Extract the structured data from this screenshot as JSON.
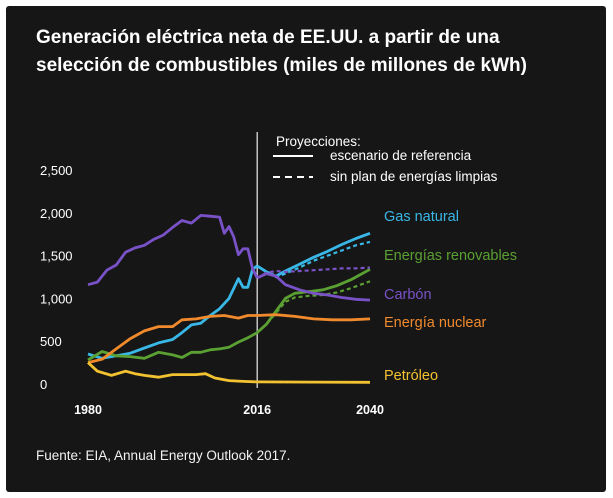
{
  "chart_data": {
    "type": "line",
    "title": "Generación eléctrica neta de EE.UU. a partir de una selección de combustibles (miles de millones de kWh)",
    "xlabel": "",
    "ylabel": "",
    "x_ticks": [
      "1980",
      "2016",
      "2040"
    ],
    "y_ticks": [
      "2,500",
      "2,000",
      "1,500",
      "1,000",
      "500",
      "0"
    ],
    "ylim": [
      0,
      2500
    ],
    "xlim": [
      1980,
      2040
    ],
    "divider_year": 2016,
    "legend": {
      "heading": "Proyecciones:",
      "entries": [
        {
          "label": "escenario de referencia",
          "style": "solid"
        },
        {
          "label": "sin plan de energías limpias",
          "style": "dashed"
        }
      ]
    },
    "series": [
      {
        "name": "Gas natural",
        "color": "#39b8e8",
        "historical": [
          [
            1980,
            350
          ],
          [
            1983,
            300
          ],
          [
            1986,
            330
          ],
          [
            1989,
            360
          ],
          [
            1992,
            420
          ],
          [
            1995,
            480
          ],
          [
            1998,
            520
          ],
          [
            2000,
            600
          ],
          [
            2002,
            690
          ],
          [
            2004,
            710
          ],
          [
            2006,
            800
          ],
          [
            2008,
            880
          ],
          [
            2010,
            1000
          ],
          [
            2012,
            1230
          ],
          [
            2013,
            1130
          ],
          [
            2014,
            1130
          ],
          [
            2015,
            1340
          ],
          [
            2016,
            1380
          ]
        ],
        "reference": [
          [
            2016,
            1380
          ],
          [
            2018,
            1310
          ],
          [
            2020,
            1260
          ],
          [
            2022,
            1320
          ],
          [
            2025,
            1400
          ],
          [
            2028,
            1480
          ],
          [
            2031,
            1550
          ],
          [
            2034,
            1630
          ],
          [
            2037,
            1700
          ],
          [
            2040,
            1760
          ]
        ],
        "no_cpp": [
          [
            2016,
            1380
          ],
          [
            2018,
            1310
          ],
          [
            2020,
            1250
          ],
          [
            2022,
            1290
          ],
          [
            2025,
            1360
          ],
          [
            2028,
            1440
          ],
          [
            2031,
            1500
          ],
          [
            2034,
            1560
          ],
          [
            2037,
            1620
          ],
          [
            2040,
            1660
          ]
        ]
      },
      {
        "name": "Energías renovables",
        "color": "#5aa032",
        "historical": [
          [
            1980,
            280
          ],
          [
            1983,
            380
          ],
          [
            1986,
            330
          ],
          [
            1989,
            320
          ],
          [
            1992,
            300
          ],
          [
            1995,
            370
          ],
          [
            1998,
            340
          ],
          [
            2000,
            310
          ],
          [
            2002,
            370
          ],
          [
            2004,
            370
          ],
          [
            2006,
            400
          ],
          [
            2008,
            410
          ],
          [
            2010,
            430
          ],
          [
            2012,
            490
          ],
          [
            2014,
            540
          ],
          [
            2016,
            600
          ]
        ],
        "reference": [
          [
            2016,
            600
          ],
          [
            2018,
            700
          ],
          [
            2020,
            850
          ],
          [
            2022,
            1000
          ],
          [
            2024,
            1060
          ],
          [
            2027,
            1080
          ],
          [
            2030,
            1100
          ],
          [
            2033,
            1150
          ],
          [
            2036,
            1220
          ],
          [
            2040,
            1340
          ]
        ],
        "no_cpp": [
          [
            2016,
            600
          ],
          [
            2018,
            700
          ],
          [
            2020,
            830
          ],
          [
            2022,
            960
          ],
          [
            2024,
            1010
          ],
          [
            2027,
            1030
          ],
          [
            2030,
            1040
          ],
          [
            2033,
            1070
          ],
          [
            2036,
            1120
          ],
          [
            2040,
            1200
          ]
        ]
      },
      {
        "name": "Carbón",
        "color": "#7a52c7",
        "historical": [
          [
            1980,
            1160
          ],
          [
            1982,
            1190
          ],
          [
            1984,
            1330
          ],
          [
            1986,
            1390
          ],
          [
            1988,
            1540
          ],
          [
            1990,
            1590
          ],
          [
            1992,
            1620
          ],
          [
            1994,
            1690
          ],
          [
            1996,
            1740
          ],
          [
            1998,
            1830
          ],
          [
            2000,
            1910
          ],
          [
            2002,
            1880
          ],
          [
            2004,
            1970
          ],
          [
            2006,
            1960
          ],
          [
            2008,
            1950
          ],
          [
            2009,
            1760
          ],
          [
            2010,
            1840
          ],
          [
            2011,
            1720
          ],
          [
            2012,
            1510
          ],
          [
            2013,
            1580
          ],
          [
            2014,
            1580
          ],
          [
            2015,
            1350
          ],
          [
            2016,
            1240
          ]
        ],
        "reference": [
          [
            2016,
            1240
          ],
          [
            2018,
            1290
          ],
          [
            2020,
            1260
          ],
          [
            2022,
            1160
          ],
          [
            2025,
            1100
          ],
          [
            2028,
            1060
          ],
          [
            2031,
            1040
          ],
          [
            2034,
            1010
          ],
          [
            2037,
            990
          ],
          [
            2040,
            980
          ]
        ],
        "no_cpp": [
          [
            2016,
            1240
          ],
          [
            2018,
            1300
          ],
          [
            2020,
            1320
          ],
          [
            2022,
            1310
          ],
          [
            2025,
            1320
          ],
          [
            2028,
            1330
          ],
          [
            2031,
            1340
          ],
          [
            2034,
            1350
          ],
          [
            2037,
            1350
          ],
          [
            2040,
            1360
          ]
        ]
      },
      {
        "name": "Energía nuclear",
        "color": "#f08a2c",
        "historical": [
          [
            1980,
            250
          ],
          [
            1983,
            290
          ],
          [
            1986,
            410
          ],
          [
            1989,
            530
          ],
          [
            1992,
            620
          ],
          [
            1995,
            670
          ],
          [
            1998,
            670
          ],
          [
            2000,
            750
          ],
          [
            2003,
            760
          ],
          [
            2006,
            790
          ],
          [
            2009,
            800
          ],
          [
            2012,
            770
          ],
          [
            2014,
            800
          ],
          [
            2016,
            800
          ]
        ],
        "reference": [
          [
            2016,
            800
          ],
          [
            2020,
            810
          ],
          [
            2024,
            790
          ],
          [
            2028,
            760
          ],
          [
            2032,
            750
          ],
          [
            2036,
            750
          ],
          [
            2040,
            760
          ]
        ],
        "no_cpp": [
          [
            2016,
            800
          ],
          [
            2020,
            810
          ],
          [
            2024,
            790
          ],
          [
            2028,
            760
          ],
          [
            2032,
            750
          ],
          [
            2036,
            750
          ],
          [
            2040,
            760
          ]
        ]
      },
      {
        "name": "Petróleo",
        "color": "#f2c231",
        "historical": [
          [
            1980,
            250
          ],
          [
            1982,
            150
          ],
          [
            1985,
            100
          ],
          [
            1988,
            150
          ],
          [
            1990,
            120
          ],
          [
            1992,
            100
          ],
          [
            1995,
            80
          ],
          [
            1998,
            110
          ],
          [
            2000,
            110
          ],
          [
            2003,
            110
          ],
          [
            2005,
            120
          ],
          [
            2007,
            70
          ],
          [
            2010,
            40
          ],
          [
            2013,
            30
          ],
          [
            2016,
            25
          ]
        ],
        "reference": [
          [
            2016,
            25
          ],
          [
            2028,
            22
          ],
          [
            2040,
            20
          ]
        ],
        "no_cpp": [
          [
            2016,
            25
          ],
          [
            2028,
            22
          ],
          [
            2040,
            20
          ]
        ]
      }
    ]
  },
  "source": "Fuente: EIA, Annual Energy Outlook 2017."
}
